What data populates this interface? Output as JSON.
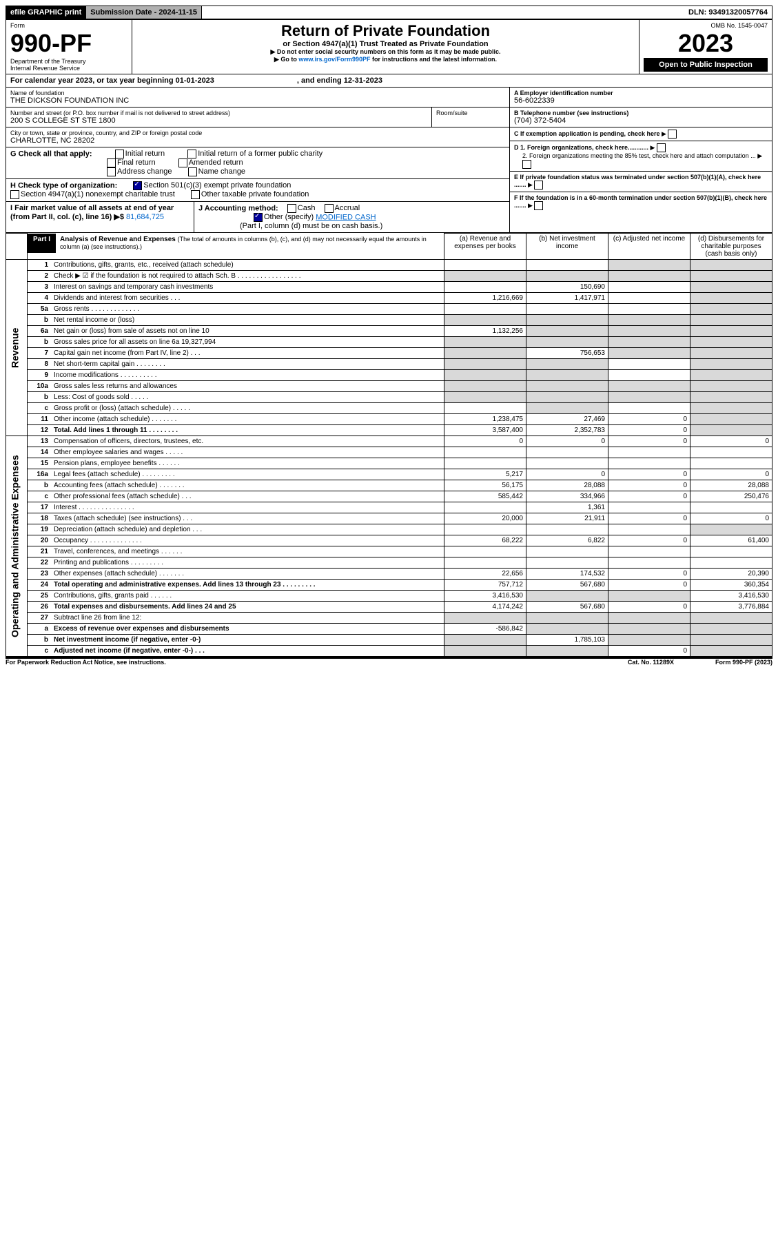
{
  "topbar": {
    "efile": "efile GRAPHIC print",
    "subdate_lbl": "Submission Date - 2024-11-15",
    "dln": "DLN: 93491320057764"
  },
  "hdr": {
    "form": "Form",
    "formno": "990-PF",
    "dept": "Department of the Treasury",
    "irs": "Internal Revenue Service",
    "title": "Return of Private Foundation",
    "sub": "or Section 4947(a)(1) Trust Treated as Private Foundation",
    "note1": "▶ Do not enter social security numbers on this form as it may be made public.",
    "note2": "▶ Go to ",
    "link": "www.irs.gov/Form990PF",
    "note3": " for instructions and the latest information.",
    "omb": "OMB No. 1545-0047",
    "year": "2023",
    "open": "Open to Public Inspection"
  },
  "cal": {
    "line": "For calendar year 2023, or tax year beginning 01-01-2023",
    "end": ", and ending 12-31-2023"
  },
  "id": {
    "name_lbl": "Name of foundation",
    "name": "THE DICKSON FOUNDATION INC",
    "addr_lbl": "Number and street (or P.O. box number if mail is not delivered to street address)",
    "addr": "200 S COLLEGE ST STE 1800",
    "room_lbl": "Room/suite",
    "city_lbl": "City or town, state or province, country, and ZIP or foreign postal code",
    "city": "CHARLOTTE, NC  28202",
    "ein_lbl": "A Employer identification number",
    "ein": "56-6022339",
    "tel_lbl": "B Telephone number (see instructions)",
    "tel": "(704) 372-5404",
    "c": "C If exemption application is pending, check here",
    "d1": "D 1. Foreign organizations, check here............",
    "d2": "2. Foreign organizations meeting the 85% test, check here and attach computation ...",
    "e": "E If private foundation status was terminated under section 507(b)(1)(A), check here .......",
    "f": "F  If the foundation is in a 60-month termination under section 507(b)(1)(B), check here .......",
    "g": "G Check all that apply:",
    "g1": "Initial return",
    "g2": "Initial return of a former public charity",
    "g3": "Final return",
    "g4": "Amended return",
    "g5": "Address change",
    "g6": "Name change",
    "h": "H Check type of organization:",
    "h1": "Section 501(c)(3) exempt private foundation",
    "h2": "Section 4947(a)(1) nonexempt charitable trust",
    "h3": "Other taxable private foundation",
    "i": "I Fair market value of all assets at end of year (from Part II, col. (c), line 16) ▶$ ",
    "ival": "81,684,725",
    "j": "J Accounting method:",
    "j1": "Cash",
    "j2": "Accrual",
    "j3": "Other (specify)",
    "j3v": "MODIFIED CASH",
    "jnote": "(Part I, column (d) must be on cash basis.)"
  },
  "part1": {
    "hdr": "Part I",
    "title": "Analysis of Revenue and Expenses",
    "titlenote": "(The total of amounts in columns (b), (c), and (d) may not necessarily equal the amounts in column (a) (see instructions).)",
    "colA": "(a)   Revenue and expenses per books",
    "colB": "(b)   Net investment income",
    "colC": "(c)  Adjusted net income",
    "colD": "(d)  Disbursements for charitable purposes (cash basis only)",
    "sideRev": "Revenue",
    "sideExp": "Operating and Administrative Expenses"
  },
  "rows": [
    {
      "n": "1",
      "t": "Contributions, gifts, grants, etc., received (attach schedule)",
      "a": "",
      "b": "",
      "c": "",
      "d": "",
      "dS": true,
      "cS": true
    },
    {
      "n": "2",
      "t": "Check ▶ ☑ if the foundation is not required to attach Sch. B  .  .  .  .  .  .  .  .  .  .  .  .  .  .  .  .  .",
      "a": "",
      "b": "",
      "c": "",
      "d": "",
      "aS": true,
      "bS": true,
      "cS": true,
      "dS": true
    },
    {
      "n": "3",
      "t": "Interest on savings and temporary cash investments",
      "a": "",
      "b": "150,690",
      "c": "",
      "d": "",
      "dS": true
    },
    {
      "n": "4",
      "t": "Dividends and interest from securities   .   .   .",
      "a": "1,216,669",
      "b": "1,417,971",
      "c": "",
      "d": "",
      "dS": true
    },
    {
      "n": "5a",
      "t": "Gross rents    .  .  .  .  .  .  .  .  .  .  .  .  .",
      "a": "",
      "b": "",
      "c": "",
      "d": "",
      "dS": true
    },
    {
      "n": "b",
      "t": "Net rental income or (loss)  ",
      "a": "",
      "b": "",
      "c": "",
      "d": "",
      "aS": true,
      "bS": true,
      "cS": true,
      "dS": true
    },
    {
      "n": "6a",
      "t": "Net gain or (loss) from sale of assets not on line 10",
      "a": "1,132,256",
      "b": "",
      "c": "",
      "d": "",
      "bS": true,
      "cS": true,
      "dS": true
    },
    {
      "n": "b",
      "t": "Gross sales price for all assets on line 6a             19,327,994",
      "a": "",
      "b": "",
      "c": "",
      "d": "",
      "aS": true,
      "bS": true,
      "cS": true,
      "dS": true
    },
    {
      "n": "7",
      "t": "Capital gain net income (from Part IV, line 2)   .   .   .",
      "a": "",
      "b": "756,653",
      "c": "",
      "d": "",
      "aS": true,
      "cS": true,
      "dS": true
    },
    {
      "n": "8",
      "t": "Net short-term capital gain   .  .  .  .  .  .  .  .",
      "a": "",
      "b": "",
      "c": "",
      "d": "",
      "aS": true,
      "bS": true,
      "dS": true
    },
    {
      "n": "9",
      "t": "Income modifications  .  .  .  .  .  .  .  .  .  .",
      "a": "",
      "b": "",
      "c": "",
      "d": "",
      "aS": true,
      "bS": true,
      "dS": true
    },
    {
      "n": "10a",
      "t": "Gross sales less returns and allowances",
      "a": "",
      "b": "",
      "c": "",
      "d": "",
      "aS": true,
      "bS": true,
      "cS": true,
      "dS": true
    },
    {
      "n": "b",
      "t": "Less: Cost of goods sold    .   .   .   .   .",
      "a": "",
      "b": "",
      "c": "",
      "d": "",
      "aS": true,
      "bS": true,
      "cS": true,
      "dS": true
    },
    {
      "n": "c",
      "t": "Gross profit or (loss) (attach schedule)    .   .   .   .   .",
      "a": "",
      "b": "",
      "c": "",
      "d": "",
      "bS": true,
      "dS": true
    },
    {
      "n": "11",
      "t": "Other income (attach schedule)   .  .  .  .  .  .  .",
      "a": "1,238,475",
      "b": "27,469",
      "c": "0",
      "d": "",
      "dS": true
    },
    {
      "n": "12",
      "t": "Total. Add lines 1 through 11   .  .  .  .  .  .  .  .",
      "bold": true,
      "a": "3,587,400",
      "b": "2,352,783",
      "c": "0",
      "d": "",
      "dS": true
    },
    {
      "n": "13",
      "t": "Compensation of officers, directors, trustees, etc.",
      "a": "0",
      "b": "0",
      "c": "0",
      "d": "0"
    },
    {
      "n": "14",
      "t": "Other employee salaries and wages   .   .   .   .   .",
      "a": "",
      "b": "",
      "c": "",
      "d": ""
    },
    {
      "n": "15",
      "t": "Pension plans, employee benefits  .  .  .  .  .  .",
      "a": "",
      "b": "",
      "c": "",
      "d": ""
    },
    {
      "n": "16a",
      "t": "Legal fees (attach schedule)  .  .  .  .  .  .  .  .  .",
      "a": "5,217",
      "b": "0",
      "c": "0",
      "d": "0"
    },
    {
      "n": "b",
      "t": "Accounting fees (attach schedule)  .  .  .  .  .  .  .",
      "a": "56,175",
      "b": "28,088",
      "c": "0",
      "d": "28,088"
    },
    {
      "n": "c",
      "t": "Other professional fees (attach schedule)    .   .   .",
      "a": "585,442",
      "b": "334,966",
      "c": "0",
      "d": "250,476"
    },
    {
      "n": "17",
      "t": "Interest   .  .  .  .  .  .  .  .  .  .  .  .  .  .  .",
      "a": "",
      "b": "1,361",
      "c": "",
      "d": ""
    },
    {
      "n": "18",
      "t": "Taxes (attach schedule) (see instructions)    .   .   .",
      "a": "20,000",
      "b": "21,911",
      "c": "0",
      "d": "0"
    },
    {
      "n": "19",
      "t": "Depreciation (attach schedule) and depletion   .   .   .",
      "a": "",
      "b": "",
      "c": "",
      "d": "",
      "dS": true
    },
    {
      "n": "20",
      "t": "Occupancy  .  .  .  .  .  .  .  .  .  .  .  .  .  .",
      "a": "68,222",
      "b": "6,822",
      "c": "0",
      "d": "61,400"
    },
    {
      "n": "21",
      "t": "Travel, conferences, and meetings  .  .  .  .  .  .",
      "a": "",
      "b": "",
      "c": "",
      "d": ""
    },
    {
      "n": "22",
      "t": "Printing and publications  .  .  .  .  .  .  .  .  .",
      "a": "",
      "b": "",
      "c": "",
      "d": ""
    },
    {
      "n": "23",
      "t": "Other expenses (attach schedule)  .  .  .  .  .  .  .",
      "a": "22,656",
      "b": "174,532",
      "c": "0",
      "d": "20,390"
    },
    {
      "n": "24",
      "t": "Total operating and administrative expenses. Add lines 13 through 23   .  .  .  .  .  .  .  .  .",
      "bold": true,
      "a": "757,712",
      "b": "567,680",
      "c": "0",
      "d": "360,354"
    },
    {
      "n": "25",
      "t": "Contributions, gifts, grants paid   .   .   .   .   .   .",
      "a": "3,416,530",
      "b": "",
      "c": "",
      "d": "3,416,530",
      "bS": true,
      "cS": true
    },
    {
      "n": "26",
      "t": "Total expenses and disbursements. Add lines 24 and 25",
      "bold": true,
      "a": "4,174,242",
      "b": "567,680",
      "c": "0",
      "d": "3,776,884"
    },
    {
      "n": "27",
      "t": "Subtract line 26 from line 12:",
      "a": "",
      "b": "",
      "c": "",
      "d": "",
      "aS": true,
      "bS": true,
      "cS": true,
      "dS": true
    },
    {
      "n": "a",
      "t": "Excess of revenue over expenses and disbursements",
      "bold": true,
      "a": "-586,842",
      "b": "",
      "c": "",
      "d": "",
      "bS": true,
      "cS": true,
      "dS": true
    },
    {
      "n": "b",
      "t": "Net investment income (if negative, enter -0-)",
      "bold": true,
      "a": "",
      "b": "1,785,103",
      "c": "",
      "d": "",
      "aS": true,
      "cS": true,
      "dS": true
    },
    {
      "n": "c",
      "t": "Adjusted net income (if negative, enter -0-)   .   .   .",
      "bold": true,
      "a": "",
      "b": "",
      "c": "0",
      "d": "",
      "aS": true,
      "bS": true,
      "dS": true
    }
  ],
  "foot": {
    "pra": "For Paperwork Reduction Act Notice, see instructions.",
    "cat": "Cat. No. 11289X",
    "form": "Form 990-PF (2023)"
  }
}
